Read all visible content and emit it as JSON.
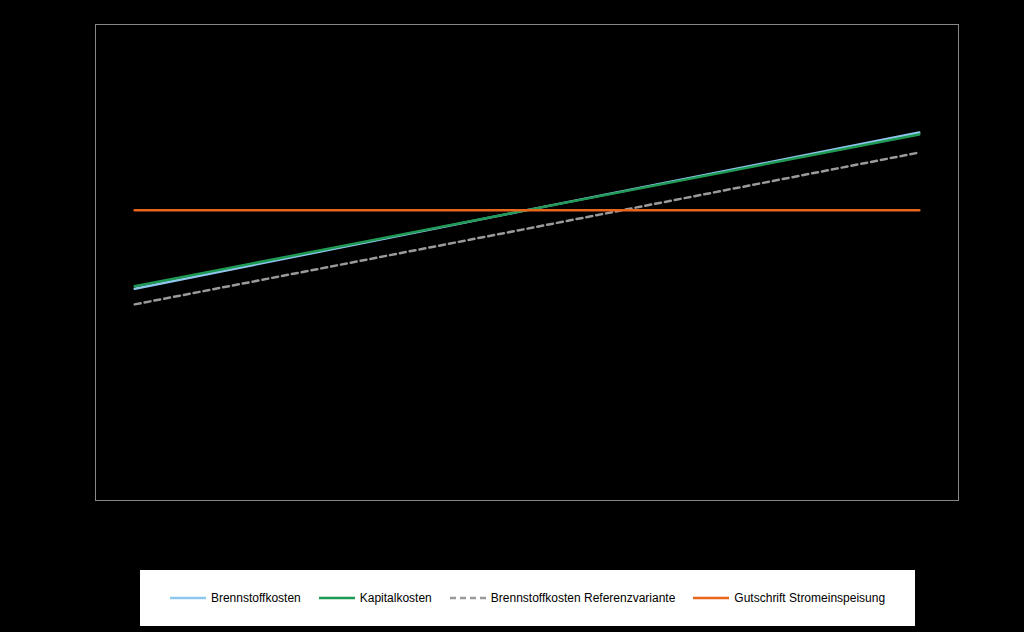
{
  "chart_data": {
    "type": "line",
    "x": [
      -1,
      0,
      1
    ],
    "xlim": [
      -1.1,
      1.1
    ],
    "ylim": [
      0,
      100
    ],
    "tick_labels": false,
    "legend": "bottom",
    "series": [
      {
        "name": "Brennstoffkosten",
        "color": "#8fc6ee",
        "line_style": "solid",
        "values": [
          44.5,
          61,
          77.3
        ]
      },
      {
        "name": "Kapitalkosten",
        "color": "#1f9a55",
        "line_style": "solid",
        "values": [
          45,
          61,
          76.9
        ]
      },
      {
        "name": "Brennstoffkosten Referenzvariante",
        "color": "#9a9a9a",
        "line_style": "dashed",
        "values": [
          41.2,
          57.1,
          73.1
        ]
      },
      {
        "name": "Gutschrift Stromeinspeisung",
        "color": "#e8661c",
        "line_style": "solid",
        "values": [
          61,
          61,
          61
        ]
      }
    ]
  }
}
